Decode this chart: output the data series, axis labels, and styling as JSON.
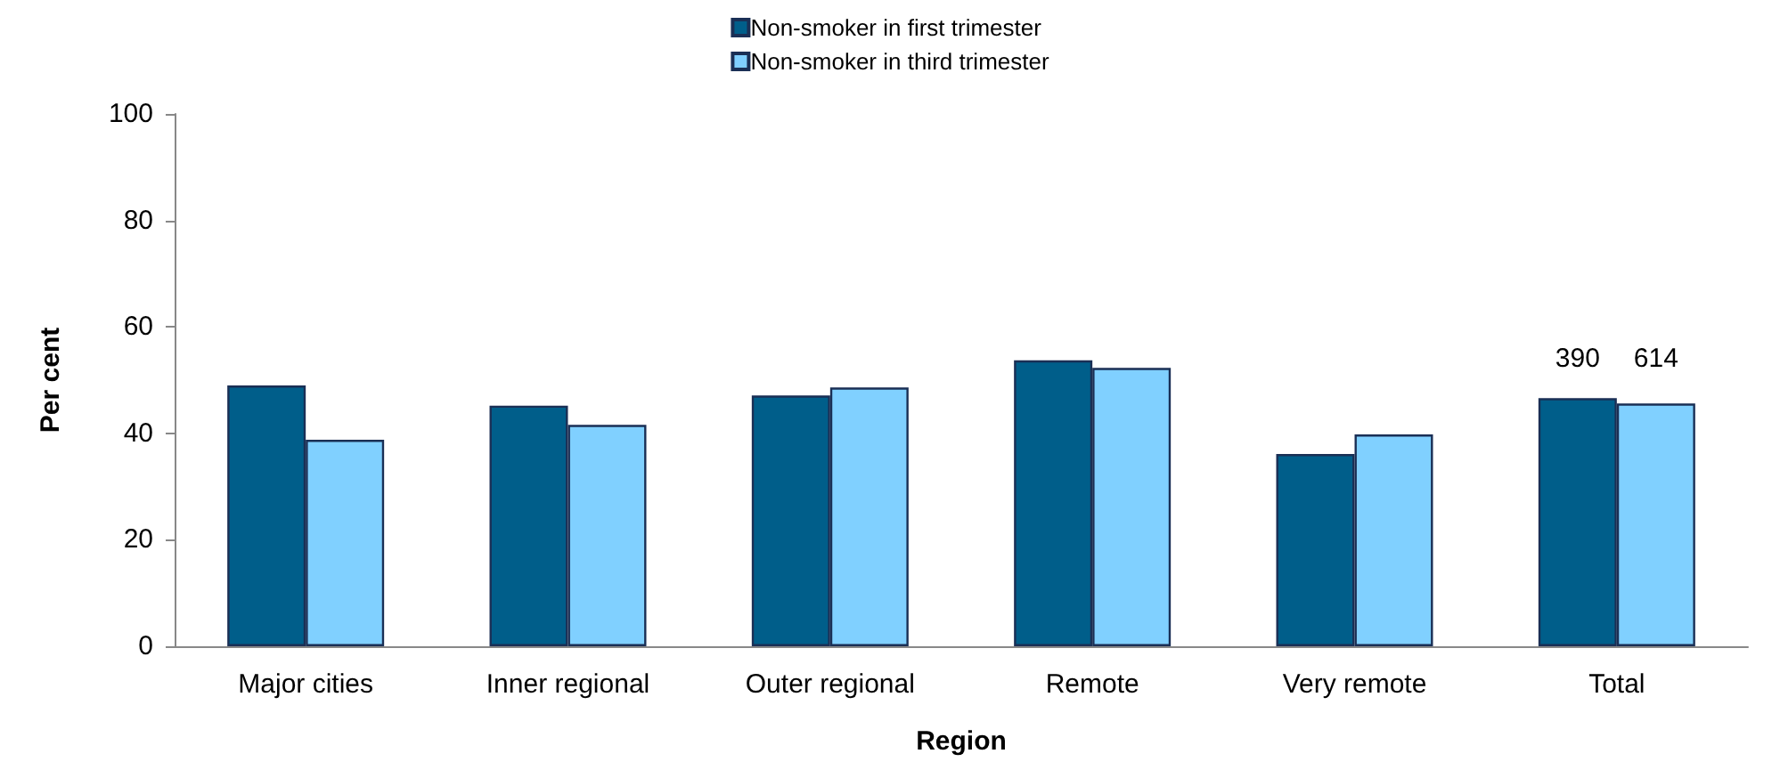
{
  "chart_data": {
    "type": "bar",
    "xlabel": "Region",
    "ylabel": "Per cent",
    "categories": [
      "Major cities",
      "Inner regional",
      "Outer regional",
      "Remote",
      "Very remote",
      "Total"
    ],
    "series": [
      {
        "name": "Non-smoker in first trimester",
        "color": "#005e8a",
        "values": [
          49.0,
          45.2,
          47.1,
          53.7,
          36.1,
          46.6
        ]
      },
      {
        "name": "Non-smoker in third trimester",
        "color": "#80d0ff",
        "values": [
          38.8,
          41.6,
          48.6,
          52.3,
          39.8,
          45.6
        ]
      }
    ],
    "ylim": [
      0,
      100
    ],
    "yticks": [
      0,
      20,
      40,
      60,
      80,
      100
    ],
    "grid": false,
    "legend": "top",
    "annotations": [
      "390",
      "614"
    ]
  }
}
